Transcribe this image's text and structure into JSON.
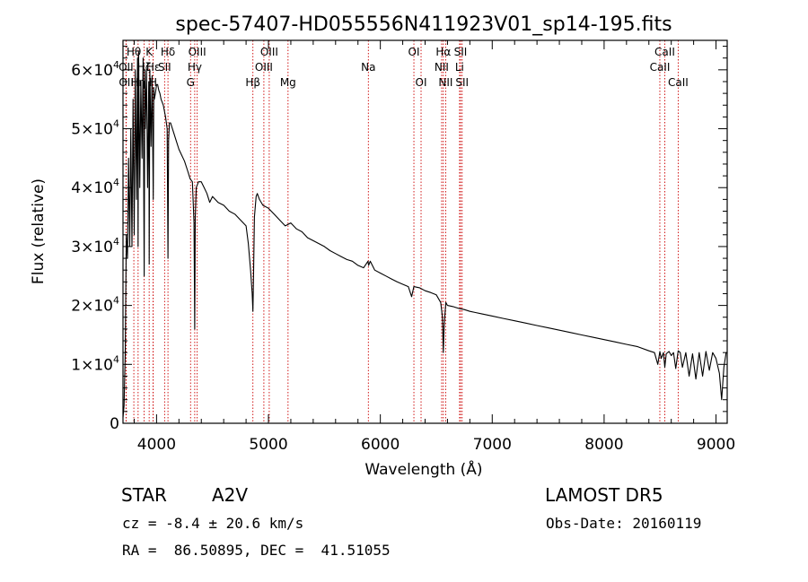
{
  "chart_data": {
    "type": "line",
    "title": "spec-57407-HD055556N411923V01_sp14-195.fits",
    "xlabel": "Wavelength (Å)",
    "ylabel": "Flux (relative)",
    "xlim": [
      3700,
      9100
    ],
    "ylim": [
      0,
      65000
    ],
    "xticks": [
      4000,
      5000,
      6000,
      7000,
      8000,
      9000
    ],
    "xtick_labels": [
      "4000",
      "5000",
      "6000",
      "7000",
      "8000",
      "9000"
    ],
    "yticks": [
      0,
      10000,
      20000,
      30000,
      40000,
      50000,
      60000
    ],
    "ytick_labels": [
      {
        "mant": "0",
        "exp": ""
      },
      {
        "mant": "1×10",
        "exp": "4"
      },
      {
        "mant": "2×10",
        "exp": "4"
      },
      {
        "mant": "3×10",
        "exp": "4"
      },
      {
        "mant": "4×10",
        "exp": "4"
      },
      {
        "mant": "5×10",
        "exp": "4"
      },
      {
        "mant": "6×10",
        "exp": "4"
      }
    ],
    "grid": false,
    "series": [
      {
        "x": [
          3700,
          3710,
          3720,
          3730,
          3740,
          3750,
          3760,
          3770,
          3780,
          3790,
          3800,
          3810,
          3820,
          3830,
          3835,
          3840,
          3850,
          3860,
          3870,
          3880,
          3889,
          3895,
          3900,
          3910,
          3920,
          3930,
          3934,
          3940,
          3950,
          3960,
          3970,
          3975,
          3980,
          3990,
          4000,
          4010,
          4020,
          4030,
          4040,
          4060,
          4080,
          4095,
          4102,
          4108,
          4115,
          4125,
          4150,
          4175,
          4200,
          4225,
          4250,
          4275,
          4300,
          4320,
          4335,
          4341,
          4346,
          4355,
          4375,
          4400,
          4425,
          4450,
          4475,
          4500,
          4550,
          4600,
          4650,
          4700,
          4750,
          4800,
          4820,
          4840,
          4855,
          4861,
          4866,
          4875,
          4890,
          4900,
          4920,
          4950,
          5000,
          5050,
          5100,
          5150,
          5200,
          5250,
          5300,
          5350,
          5400,
          5450,
          5500,
          5550,
          5600,
          5650,
          5700,
          5750,
          5800,
          5850,
          5890,
          5895,
          5910,
          5950,
          6000,
          6050,
          6100,
          6150,
          6200,
          6250,
          6280,
          6300,
          6350,
          6400,
          6450,
          6500,
          6540,
          6555,
          6563,
          6570,
          6585,
          6600,
          6650,
          6700,
          6750,
          6800,
          6850,
          6900,
          7000,
          7100,
          7200,
          7300,
          7400,
          7500,
          7600,
          7700,
          7800,
          7900,
          8000,
          8100,
          8200,
          8300,
          8400,
          8450,
          8480,
          8498,
          8510,
          8530,
          8542,
          8555,
          8580,
          8600,
          8620,
          8640,
          8662,
          8680,
          8700,
          8730,
          8760,
          8790,
          8820,
          8850,
          8880,
          8910,
          8940,
          8970,
          9000,
          9030,
          9050,
          9070,
          9090,
          9100
        ],
        "y": [
          1000,
          3000,
          12000,
          32000,
          28000,
          45000,
          30000,
          50000,
          30000,
          55000,
          32000,
          60000,
          38000,
          62000,
          30000,
          63000,
          40000,
          58000,
          45000,
          62000,
          25000,
          60000,
          50000,
          60000,
          40000,
          58000,
          27000,
          60000,
          47000,
          59000,
          38000,
          57000,
          55000,
          56000,
          57500,
          57500,
          56500,
          56000,
          55000,
          54000,
          52000,
          50000,
          28000,
          48000,
          51000,
          51000,
          49500,
          48000,
          46500,
          45500,
          44500,
          43000,
          41500,
          41000,
          34000,
          16000,
          35000,
          40000,
          41000,
          41000,
          40000,
          39000,
          37500,
          38500,
          37500,
          37000,
          36000,
          35500,
          34500,
          33500,
          30500,
          26000,
          22000,
          19000,
          24000,
          35000,
          38500,
          39000,
          38000,
          37000,
          36500,
          35500,
          34500,
          33500,
          34000,
          33000,
          32500,
          31500,
          31000,
          30500,
          30000,
          29300,
          28800,
          28300,
          27800,
          27500,
          26800,
          26400,
          27500,
          26800,
          27500,
          26000,
          25500,
          25000,
          24500,
          24000,
          23600,
          23200,
          21500,
          23200,
          23000,
          22500,
          22200,
          21800,
          20500,
          18000,
          12000,
          16500,
          20500,
          20000,
          19800,
          19500,
          19300,
          19000,
          18800,
          18600,
          18200,
          17800,
          17400,
          17000,
          16600,
          16200,
          15800,
          15400,
          15000,
          14600,
          14200,
          13800,
          13400,
          13000,
          12300,
          12000,
          10000,
          12200,
          11000,
          12000,
          9500,
          11800,
          12200,
          11500,
          12000,
          9300,
          12300,
          12000,
          9500,
          12000,
          8000,
          11800,
          7500,
          12000,
          8000,
          12200,
          9000,
          12000,
          11000,
          8500,
          4000,
          9500,
          12000,
          12000
        ]
      }
    ],
    "lines": [
      {
        "label": "Hθ",
        "wl": 3797,
        "row": 1
      },
      {
        "label": "OII",
        "wl": 3727,
        "row": 2
      },
      {
        "label": "OII",
        "wl": 3729,
        "row": 3
      },
      {
        "label": "Hη",
        "wl": 3835,
        "row": 3
      },
      {
        "label": "Hζ",
        "wl": 3889,
        "row": 2
      },
      {
        "label": "K",
        "wl": 3934,
        "row": 1
      },
      {
        "label": "H",
        "wl": 3969,
        "row": 3
      },
      {
        "label": "Hε",
        "wl": 3970,
        "row": 2
      },
      {
        "label": "Hδ",
        "wl": 4102,
        "row": 1
      },
      {
        "label": "SII",
        "wl": 4072,
        "row": 2
      },
      {
        "label": "OIII",
        "wl": 4363,
        "row": 1
      },
      {
        "label": "Hγ",
        "wl": 4341,
        "row": 2
      },
      {
        "label": "G",
        "wl": 4304,
        "row": 3
      },
      {
        "label": "Hβ",
        "wl": 4861,
        "row": 3
      },
      {
        "label": "OIII",
        "wl": 5007,
        "row": 1
      },
      {
        "label": "OIII",
        "wl": 4959,
        "row": 2
      },
      {
        "label": "Mg",
        "wl": 5175,
        "row": 3
      },
      {
        "label": "Na",
        "wl": 5893,
        "row": 2
      },
      {
        "label": "OI",
        "wl": 6300,
        "row": 1
      },
      {
        "label": "OI",
        "wl": 6364,
        "row": 3
      },
      {
        "label": "Hα",
        "wl": 6563,
        "row": 1
      },
      {
        "label": "NII",
        "wl": 6548,
        "row": 2
      },
      {
        "label": "NII",
        "wl": 6584,
        "row": 3
      },
      {
        "label": "SII",
        "wl": 6717,
        "row": 1
      },
      {
        "label": "Li",
        "wl": 6708,
        "row": 2
      },
      {
        "label": "SII",
        "wl": 6731,
        "row": 3
      },
      {
        "label": "CaII",
        "wl": 8542,
        "row": 1
      },
      {
        "label": "CaII",
        "wl": 8498,
        "row": 2
      },
      {
        "label": "CaII",
        "wl": 8662,
        "row": 3
      }
    ],
    "line_color": "#cc0000",
    "spectrum_color": "#000000"
  },
  "info": {
    "class_label": "STAR",
    "subclass": "A2V",
    "survey": "LAMOST DR5",
    "cz": "cz = -8.4 ± 20.6 km/s",
    "obs_date": "Obs-Date: 20160119",
    "coords": "RA =  86.50895, DEC =  41.51055"
  }
}
